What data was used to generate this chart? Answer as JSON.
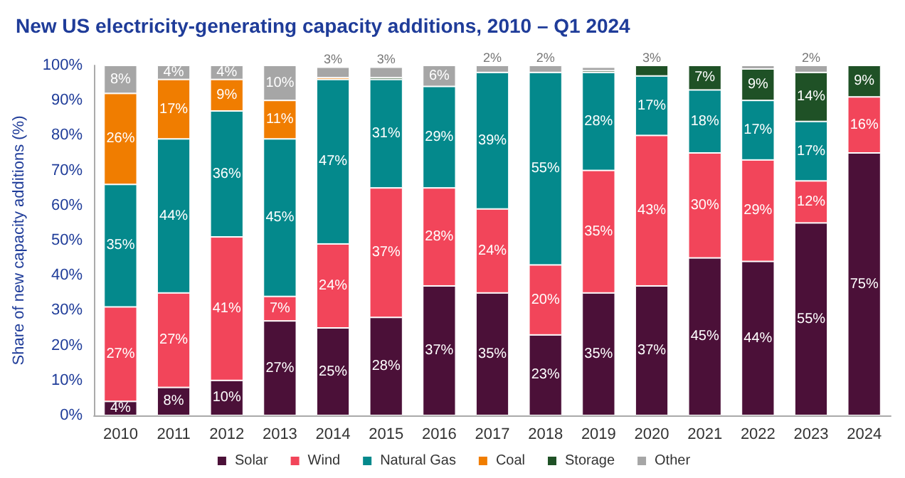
{
  "chart_data": {
    "type": "bar",
    "stacked": true,
    "title": "New US electricity-generating capacity additions, 2010 – Q1 2024",
    "ylabel": "Share of new capacity additions (%)",
    "categories": [
      "2010",
      "2011",
      "2012",
      "2013",
      "2014",
      "2015",
      "2016",
      "2017",
      "2018",
      "2019",
      "2020",
      "2021",
      "2022",
      "2023",
      "2024"
    ],
    "series": [
      {
        "name": "Solar",
        "color": "#4b1038",
        "values": [
          4,
          8,
          10,
          27,
          25,
          28,
          37,
          35,
          23,
          35,
          37,
          45,
          44,
          55,
          75
        ],
        "value_labels": [
          "4%",
          "8%",
          "10%",
          "27%",
          "25%",
          "28%",
          "37%",
          "35%",
          "23%",
          "35%",
          "37%",
          "45%",
          "44%",
          "55%",
          "75%"
        ]
      },
      {
        "name": "Wind",
        "color": "#f2455a",
        "values": [
          27,
          27,
          41,
          7,
          24,
          37,
          28,
          24,
          20,
          35,
          43,
          30,
          29,
          12,
          16
        ],
        "value_labels": [
          "27%",
          "27%",
          "41%",
          "7%",
          "24%",
          "37%",
          "28%",
          "24%",
          "20%",
          "35%",
          "43%",
          "30%",
          "29%",
          "12%",
          "16%"
        ]
      },
      {
        "name": "Natural Gas",
        "color": "#04898c",
        "values": [
          35,
          44,
          36,
          45,
          47,
          31,
          29,
          39,
          55,
          28,
          17,
          18,
          17,
          17,
          null
        ],
        "value_labels": [
          "35%",
          "44%",
          "36%",
          "45%",
          "47%",
          "31%",
          "29%",
          "39%",
          "55%",
          "28%",
          "17%",
          "18%",
          "17%",
          "17%",
          null
        ]
      },
      {
        "name": "Coal",
        "color": "#f07d00",
        "values": [
          26,
          17,
          9,
          11,
          0.5,
          null,
          null,
          null,
          null,
          null,
          null,
          null,
          null,
          null,
          null
        ],
        "value_labels": [
          "26%",
          "17%",
          "9%",
          "11%",
          null,
          null,
          null,
          null,
          null,
          null,
          null,
          null,
          null,
          null,
          null
        ]
      },
      {
        "name": "Storage",
        "color": "#1f5126",
        "values": [
          null,
          null,
          null,
          null,
          null,
          0.5,
          null,
          null,
          null,
          0.5,
          3,
          7,
          9,
          14,
          9
        ],
        "value_labels": [
          null,
          null,
          null,
          null,
          null,
          null,
          null,
          null,
          null,
          null,
          "3%",
          "7%",
          "9%",
          "14%",
          "9%"
        ]
      },
      {
        "name": "Other",
        "color": "#a6a6a6",
        "values": [
          8,
          4,
          4,
          10,
          3,
          3,
          6,
          2,
          2,
          1,
          null,
          null,
          1,
          2,
          null
        ],
        "value_labels": [
          "8%",
          "4%",
          "4%",
          "10%",
          "3%",
          "3%",
          "6%",
          "2%",
          "2%",
          null,
          null,
          null,
          null,
          "2%",
          null
        ]
      }
    ],
    "ylim": [
      0,
      100
    ],
    "yticks": [
      {
        "value": 0,
        "label": "0%"
      },
      {
        "value": 10,
        "label": "10%"
      },
      {
        "value": 20,
        "label": "20%"
      },
      {
        "value": 30,
        "label": "30%"
      },
      {
        "value": 40,
        "label": "40%"
      },
      {
        "value": 50,
        "label": "50%"
      },
      {
        "value": 60,
        "label": "60%"
      },
      {
        "value": 70,
        "label": "70%"
      },
      {
        "value": 80,
        "label": "80%"
      },
      {
        "value": 90,
        "label": "90%"
      },
      {
        "value": 100,
        "label": "100%"
      }
    ],
    "grid": false,
    "legend": "bottom"
  }
}
